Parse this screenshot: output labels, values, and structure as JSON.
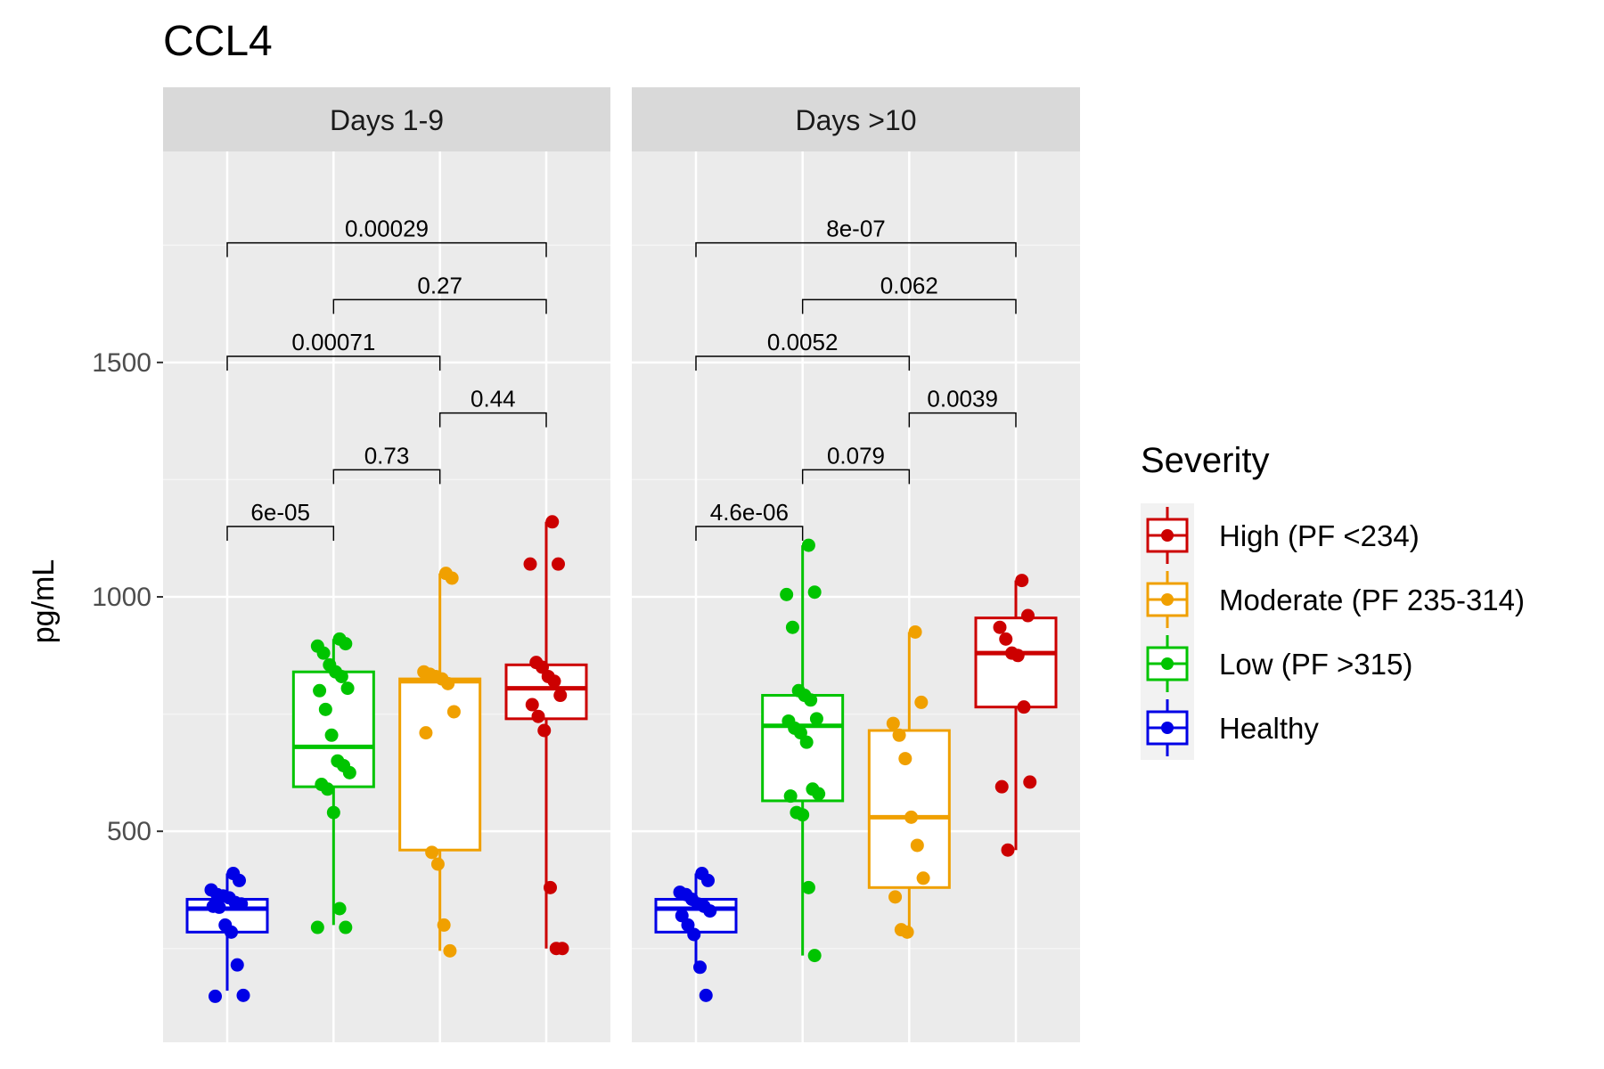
{
  "chart_data": {
    "type": "boxplot",
    "title": "CCL4",
    "ylabel": "pg/mL",
    "xlabel": "",
    "ylim": [
      50,
      1950
    ],
    "yticks": [
      500,
      1000,
      1500
    ],
    "grid": true,
    "legend": {
      "title": "Severity",
      "position": "right",
      "items": [
        {
          "key": "high",
          "label": "High (PF <234)",
          "color": "#CC0000"
        },
        {
          "key": "moderate",
          "label": "Moderate (PF 235-314)",
          "color": "#F0A000"
        },
        {
          "key": "low",
          "label": "Low (PF >315)",
          "color": "#00C400"
        },
        {
          "key": "healthy",
          "label": "Healthy",
          "color": "#0000E6"
        }
      ]
    },
    "group_order": [
      "healthy",
      "low",
      "moderate",
      "high"
    ],
    "facets": [
      {
        "label": "Days 1-9",
        "groups": [
          {
            "key": "healthy",
            "box": {
              "min": 160,
              "q1": 285,
              "median": 335,
              "q3": 355,
              "max": 410
            },
            "points": [
              410,
              395,
              375,
              365,
              362,
              358,
              348,
              345,
              340,
              338,
              300,
              285,
              215,
              150,
              148
            ]
          },
          {
            "key": "low",
            "box": {
              "min": 300,
              "q1": 595,
              "median": 680,
              "q3": 840,
              "max": 910
            },
            "points": [
              910,
              900,
              895,
              880,
              855,
              840,
              830,
              805,
              800,
              760,
              705,
              650,
              640,
              625,
              600,
              590,
              540,
              335,
              295,
              295
            ]
          },
          {
            "key": "moderate",
            "box": {
              "min": 245,
              "q1": 460,
              "median": 820,
              "q3": 825,
              "max": 1050
            },
            "points": [
              1050,
              1040,
              840,
              835,
              830,
              825,
              815,
              755,
              710,
              455,
              430,
              300,
              245
            ]
          },
          {
            "key": "high",
            "box": {
              "min": 250,
              "q1": 740,
              "median": 805,
              "q3": 855,
              "max": 1160
            },
            "points": [
              1160,
              1070,
              1070,
              860,
              850,
              830,
              820,
              790,
              770,
              745,
              715,
              380,
              250,
              250
            ]
          }
        ],
        "comparisons": [
          {
            "from": "healthy",
            "to": "low",
            "p": "6e-05",
            "level": 0
          },
          {
            "from": "low",
            "to": "moderate",
            "p": "0.73",
            "level": 1
          },
          {
            "from": "moderate",
            "to": "high",
            "p": "0.44",
            "level": 2
          },
          {
            "from": "healthy",
            "to": "moderate",
            "p": "0.00071",
            "level": 3
          },
          {
            "from": "low",
            "to": "high",
            "p": "0.27",
            "level": 4
          },
          {
            "from": "healthy",
            "to": "high",
            "p": "0.00029",
            "level": 5
          }
        ]
      },
      {
        "label": "Days >10",
        "groups": [
          {
            "key": "healthy",
            "box": {
              "min": 210,
              "q1": 285,
              "median": 335,
              "q3": 355,
              "max": 410
            },
            "points": [
              410,
              395,
              370,
              365,
              355,
              345,
              340,
              330,
              320,
              300,
              280,
              210,
              150
            ]
          },
          {
            "key": "low",
            "box": {
              "min": 235,
              "q1": 565,
              "median": 725,
              "q3": 790,
              "max": 1110
            },
            "points": [
              1110,
              1010,
              1005,
              935,
              800,
              790,
              780,
              740,
              735,
              720,
              710,
              690,
              590,
              580,
              575,
              540,
              535,
              380,
              235
            ]
          },
          {
            "key": "moderate",
            "box": {
              "min": 285,
              "q1": 380,
              "median": 530,
              "q3": 715,
              "max": 925
            },
            "points": [
              925,
              775,
              730,
              705,
              655,
              530,
              470,
              400,
              360,
              290,
              285
            ]
          },
          {
            "key": "high",
            "box": {
              "min": 460,
              "q1": 765,
              "median": 880,
              "q3": 955,
              "max": 1035
            },
            "points": [
              1035,
              960,
              935,
              910,
              880,
              875,
              765,
              605,
              595,
              460
            ]
          }
        ],
        "comparisons": [
          {
            "from": "healthy",
            "to": "low",
            "p": "4.6e-06",
            "level": 0
          },
          {
            "from": "low",
            "to": "moderate",
            "p": "0.079",
            "level": 1
          },
          {
            "from": "moderate",
            "to": "high",
            "p": "0.0039",
            "level": 2
          },
          {
            "from": "healthy",
            "to": "moderate",
            "p": "0.0052",
            "level": 3
          },
          {
            "from": "low",
            "to": "high",
            "p": "0.062",
            "level": 4
          },
          {
            "from": "healthy",
            "to": "high",
            "p": "8e-07",
            "level": 5
          }
        ]
      }
    ]
  }
}
